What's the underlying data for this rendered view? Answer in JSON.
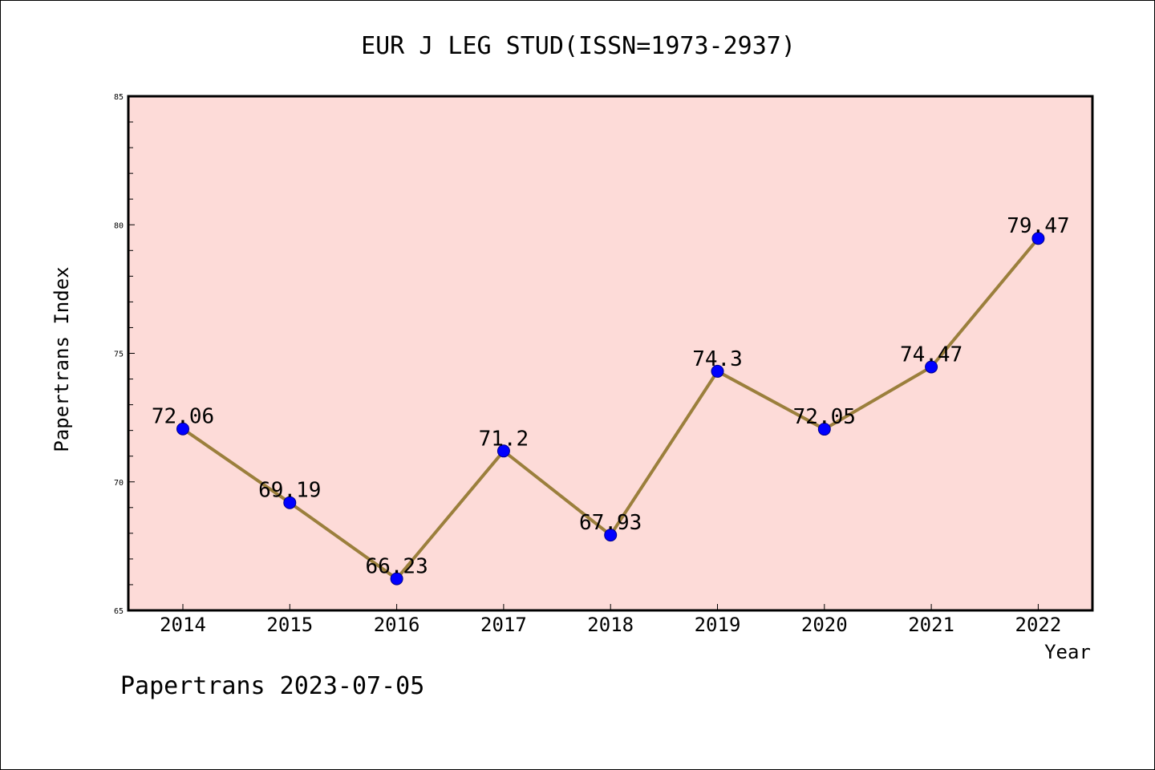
{
  "chart_data": {
    "type": "line",
    "title": "EUR J LEG STUD(ISSN=1973-2937)",
    "xlabel": "Year",
    "ylabel": "Papertrans Index",
    "categories": [
      "2014",
      "2015",
      "2016",
      "2017",
      "2018",
      "2019",
      "2020",
      "2021",
      "2022"
    ],
    "values": [
      72.06,
      69.19,
      66.23,
      71.2,
      67.93,
      74.3,
      72.05,
      74.47,
      79.47
    ],
    "data_labels": [
      "72.06",
      "69.19",
      "66.23",
      "71.2",
      "67.93",
      "74.3",
      "72.05",
      "74.47",
      "79.47"
    ],
    "ylim": [
      65,
      85
    ],
    "yticks": [
      "65",
      "70",
      "75",
      "80",
      "85"
    ],
    "grid": false,
    "legend": "none"
  },
  "footer": {
    "text": "Papertrans 2023-07-05"
  },
  "colors": {
    "plot_background": "#fddbd8",
    "line": "#9b7f3c",
    "marker": "#0000ff"
  }
}
